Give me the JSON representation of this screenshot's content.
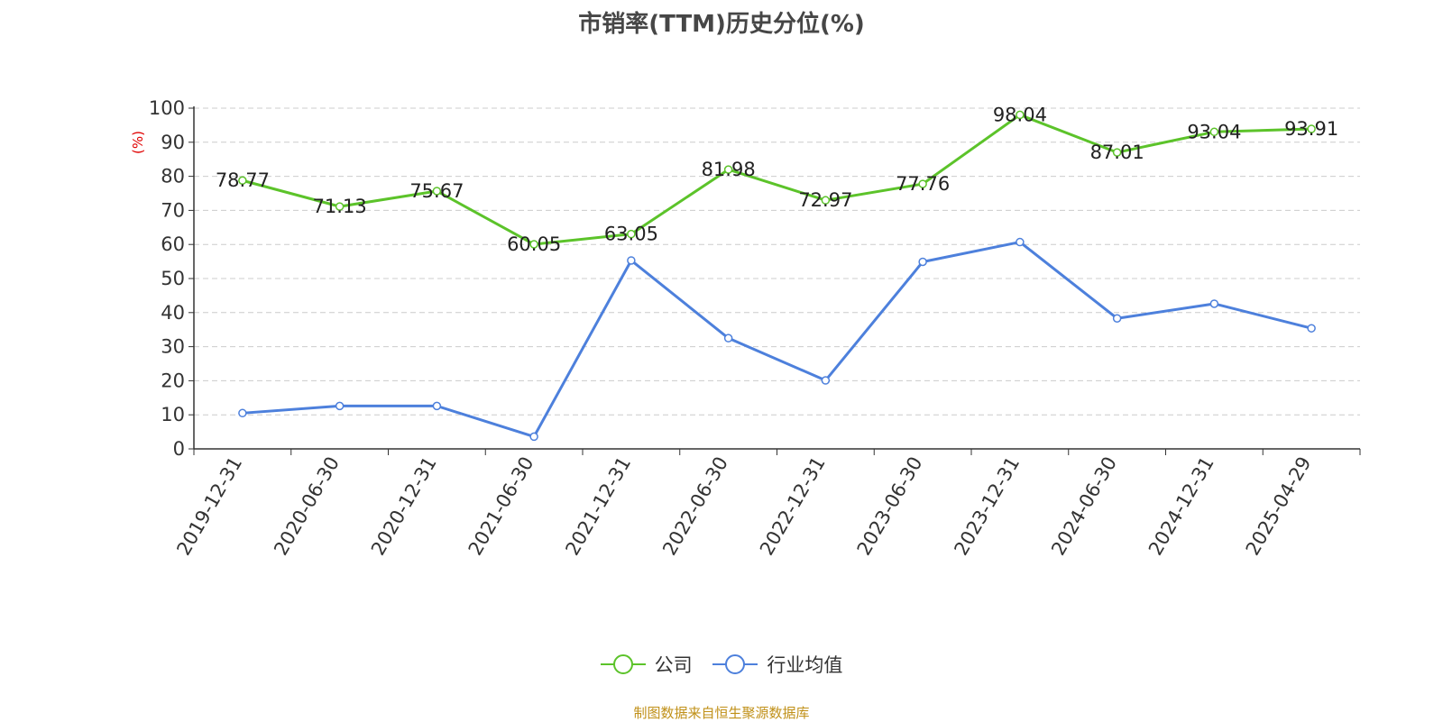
{
  "colors": {
    "company": "#5cc32a",
    "industry": "#4d80dc",
    "axis_unit": "#e00000",
    "source": "#c09018"
  },
  "chart_data": {
    "type": "line",
    "title": "市销率(TTM)历史分位(%)",
    "ylabel": "(%)",
    "ylim": [
      0,
      100
    ],
    "y_ticks": [
      "0",
      "10",
      "20",
      "30",
      "40",
      "50",
      "60",
      "70",
      "80",
      "90",
      "100"
    ],
    "categories": [
      "2019-12-31",
      "2020-06-30",
      "2020-12-31",
      "2021-06-30",
      "2021-12-31",
      "2022-06-30",
      "2022-12-31",
      "2023-06-30",
      "2023-12-31",
      "2024-06-30",
      "2024-12-31",
      "2025-04-29"
    ],
    "series": [
      {
        "name": "公司",
        "values": [
          78.77,
          71.13,
          75.67,
          60.05,
          63.05,
          81.98,
          72.97,
          77.76,
          98.04,
          87.01,
          93.04,
          93.91
        ],
        "labels": [
          "78.77",
          "71.13",
          "75.67",
          "60.05",
          "63.05",
          "81.98",
          "72.97",
          "77.76",
          "98.04",
          "87.01",
          "93.04",
          "93.91"
        ]
      },
      {
        "name": "行业均值",
        "values": [
          10.5,
          12.6,
          12.6,
          3.6,
          55.3,
          32.5,
          20.1,
          54.9,
          60.7,
          38.3,
          42.6,
          35.4
        ]
      }
    ],
    "grid": true,
    "legend_position": "bottom"
  },
  "legend": {
    "company": "公司",
    "industry": "行业均值"
  },
  "source_note": "制图数据来自恒生聚源数据库"
}
